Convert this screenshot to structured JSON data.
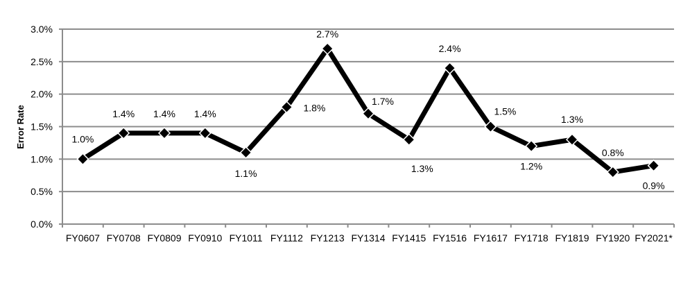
{
  "chart_data": {
    "type": "line",
    "title": "",
    "xlabel": "",
    "ylabel": "Error Rate",
    "ylim": [
      0,
      3.0
    ],
    "yticks": [
      "0.0%",
      "0.5%",
      "1.0%",
      "1.5%",
      "2.0%",
      "2.5%",
      "3.0%"
    ],
    "grid": true,
    "legend": "none",
    "categories": [
      "FY0607",
      "FY0708",
      "FY0809",
      "FY0910",
      "FY1011",
      "FY1112",
      "FY1213",
      "FY1314",
      "FY1415",
      "FY1516",
      "FY1617",
      "FY1718",
      "FY1819",
      "FY1920",
      "FY2021*"
    ],
    "series": [
      {
        "values": [
          1.0,
          1.4,
          1.4,
          1.4,
          1.1,
          1.8,
          2.7,
          1.7,
          1.3,
          2.4,
          1.5,
          1.2,
          1.3,
          0.8,
          0.9
        ],
        "labels": [
          "1.0%",
          "1.4%",
          "1.4%",
          "1.4%",
          "1.1%",
          "1.8%",
          "2.7%",
          "1.7%",
          "1.3%",
          "2.4%",
          "1.5%",
          "1.2%",
          "1.3%",
          "0.8%",
          "0.9%"
        ],
        "color": "#000000",
        "marker": "diamond"
      }
    ],
    "gridColor": "#8c8c8c"
  }
}
